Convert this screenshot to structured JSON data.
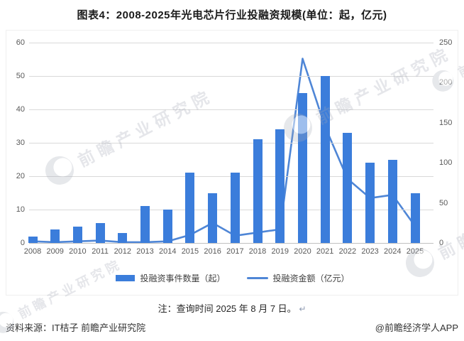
{
  "title": "图表4：2008-2025年光电芯片行业投融资规模(单位：起，亿元)",
  "chart_data": {
    "type": "bar+line combo",
    "categories": [
      "2008",
      "2009",
      "2010",
      "2011",
      "2012",
      "2013",
      "2014",
      "2015",
      "2016",
      "2017",
      "2018",
      "2019",
      "2020",
      "2021",
      "2022",
      "2023",
      "2024",
      "2025"
    ],
    "series": [
      {
        "name": "投融资事件数量（起）",
        "type": "bar",
        "axis": "left",
        "color": "#3b7ddb",
        "values": [
          2,
          4,
          5,
          6,
          3,
          11,
          10,
          21,
          15,
          21,
          31,
          34,
          45,
          50,
          33,
          24,
          25,
          15
        ]
      },
      {
        "name": "投融资金额（亿元）",
        "type": "line",
        "axis": "right",
        "color": "#4f86d6",
        "values": [
          2,
          1,
          2,
          3,
          1,
          1,
          2,
          10,
          25,
          9,
          13,
          17,
          230,
          145,
          80,
          56,
          60,
          21
        ]
      }
    ],
    "left_axis": {
      "min": 0,
      "max": 60,
      "step": 10,
      "ticks": [
        0,
        10,
        20,
        30,
        40,
        50,
        60
      ]
    },
    "right_axis": {
      "min": 0,
      "max": 250,
      "step": 50,
      "ticks": [
        0,
        50,
        100,
        150,
        200,
        250
      ]
    },
    "grid": true,
    "legend_position": "bottom",
    "gridline_color": "#d9d9d9"
  },
  "note": {
    "text": "注：查询时间 2025 年 8 月 7 日。",
    "return_mark": "↵"
  },
  "footer": {
    "source": "资料来源：IT桔子 前瞻产业研究院",
    "credit": "@前瞻经济学人APP"
  },
  "watermark": {
    "text": "前瞻产业研究院"
  }
}
